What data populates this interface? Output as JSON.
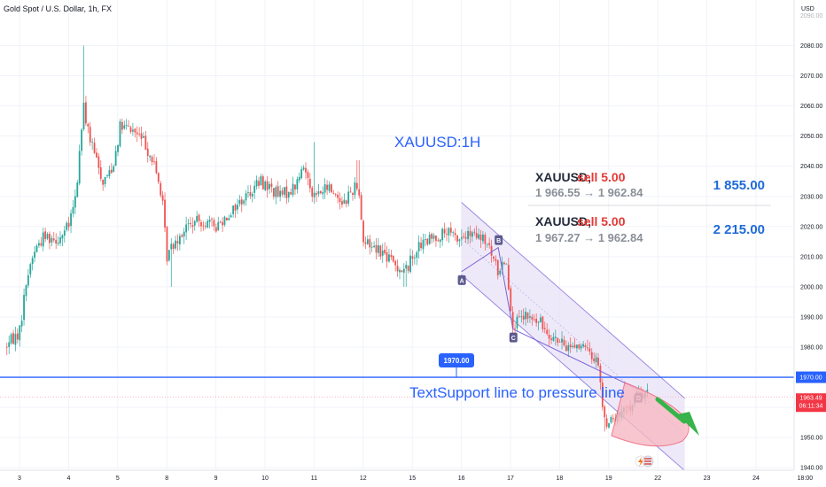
{
  "header": {
    "title": "Gold Spot / U.S. Dollar, 1h, FX",
    "currency": "USD"
  },
  "chart_data": {
    "type": "candlestick",
    "symbol": "XAUUSD",
    "timeframe": "1h",
    "ylim": [
      1938,
      2092
    ],
    "y_ticks": [
      1940,
      1950,
      1960,
      1970,
      1980,
      1990,
      2000,
      2010,
      2020,
      2030,
      2040,
      2050,
      2060,
      2070,
      2080
    ],
    "x_ticks": [
      "3",
      "4",
      "5",
      "8",
      "9",
      "10",
      "11",
      "12",
      "15",
      "16",
      "17",
      "18",
      "19",
      "22",
      "23",
      "24",
      "18:00"
    ],
    "x_tick_day_index": [
      0,
      1,
      2,
      3,
      4,
      5,
      6,
      7,
      8,
      9,
      10,
      11,
      12,
      13,
      14,
      15,
      16
    ],
    "anchors": [
      {
        "day": -0.3,
        "price": 1980
      },
      {
        "day": 0.0,
        "price": 1985
      },
      {
        "day": 0.15,
        "price": 2003
      },
      {
        "day": 0.3,
        "price": 2012
      },
      {
        "day": 0.5,
        "price": 2017
      },
      {
        "day": 0.8,
        "price": 2016
      },
      {
        "day": 1.0,
        "price": 2020
      },
      {
        "day": 1.15,
        "price": 2030
      },
      {
        "day": 1.3,
        "price": 2060
      },
      {
        "day": 1.45,
        "price": 2048
      },
      {
        "day": 1.7,
        "price": 2035
      },
      {
        "day": 1.9,
        "price": 2040
      },
      {
        "day": 2.05,
        "price": 2053
      },
      {
        "day": 2.3,
        "price": 2052
      },
      {
        "day": 2.55,
        "price": 2048
      },
      {
        "day": 2.75,
        "price": 2040
      },
      {
        "day": 2.9,
        "price": 2030
      },
      {
        "day": 3.0,
        "price": 2010
      },
      {
        "day": 3.15,
        "price": 2015
      },
      {
        "day": 3.4,
        "price": 2020
      },
      {
        "day": 3.7,
        "price": 2022
      },
      {
        "day": 4.0,
        "price": 2020
      },
      {
        "day": 4.3,
        "price": 2025
      },
      {
        "day": 4.6,
        "price": 2030
      },
      {
        "day": 4.9,
        "price": 2035
      },
      {
        "day": 5.1,
        "price": 2033
      },
      {
        "day": 5.3,
        "price": 2030
      },
      {
        "day": 5.6,
        "price": 2033
      },
      {
        "day": 5.8,
        "price": 2040
      },
      {
        "day": 6.0,
        "price": 2030
      },
      {
        "day": 6.3,
        "price": 2033
      },
      {
        "day": 6.6,
        "price": 2028
      },
      {
        "day": 6.9,
        "price": 2035
      },
      {
        "day": 7.0,
        "price": 2015
      },
      {
        "day": 7.3,
        "price": 2013
      },
      {
        "day": 7.6,
        "price": 2008
      },
      {
        "day": 7.85,
        "price": 2005
      },
      {
        "day": 8.1,
        "price": 2013
      },
      {
        "day": 8.4,
        "price": 2016
      },
      {
        "day": 8.7,
        "price": 2018
      },
      {
        "day": 8.9,
        "price": 2016
      },
      {
        "day": 9.2,
        "price": 2017
      },
      {
        "day": 9.5,
        "price": 2015
      },
      {
        "day": 9.75,
        "price": 2005
      },
      {
        "day": 9.9,
        "price": 2010
      },
      {
        "day": 10.05,
        "price": 1987
      },
      {
        "day": 10.3,
        "price": 1990
      },
      {
        "day": 10.6,
        "price": 1988
      },
      {
        "day": 10.9,
        "price": 1983
      },
      {
        "day": 11.1,
        "price": 1980
      },
      {
        "day": 11.35,
        "price": 1981
      },
      {
        "day": 11.6,
        "price": 1978
      },
      {
        "day": 11.8,
        "price": 1975
      },
      {
        "day": 11.9,
        "price": 1955
      },
      {
        "day": 12.1,
        "price": 1956
      },
      {
        "day": 12.3,
        "price": 1958
      },
      {
        "day": 12.5,
        "price": 1962
      },
      {
        "day": 12.7,
        "price": 1965
      },
      {
        "day": 12.8,
        "price": 1963.49
      }
    ],
    "spikes": [
      {
        "day": 1.3,
        "high": 2080
      },
      {
        "day": 3.1,
        "low": 2000
      },
      {
        "day": 6.0,
        "high": 2048
      },
      {
        "day": 6.9,
        "high": 2042
      },
      {
        "day": 7.85,
        "low": 2000
      },
      {
        "day": 10.05,
        "low": 1985
      },
      {
        "day": 11.9,
        "low": 1952
      }
    ],
    "channel": {
      "upper_start": {
        "day": 9.0,
        "price": 2028
      },
      "upper_end": {
        "day": 13.55,
        "price": 1963
      },
      "lower_start": {
        "day": 9.0,
        "price": 2004
      },
      "lower_end": {
        "day": 13.55,
        "price": 1939
      }
    },
    "pattern_points": [
      {
        "label": "A",
        "day": 9.0,
        "price": 2005
      },
      {
        "label": "B",
        "day": 9.75,
        "price": 2013
      },
      {
        "label": "C",
        "day": 10.05,
        "price": 1986
      },
      {
        "label": "D",
        "day": 12.6,
        "price": 1966
      }
    ],
    "annotations": {
      "symbol_label": "XAUUSD:1H",
      "support_text": "TextSupport line to pressure line"
    },
    "levels": {
      "support_level": 1970.0,
      "support_label": "1970.00",
      "last_price": 1963.49,
      "last_price_label": "1963.49",
      "countdown": "06:11:34"
    },
    "trades": [
      {
        "symbol": "XAUUSD,",
        "side": "sell 5.00",
        "range": "1 966.55 → 1 962.84",
        "profit": "1 855.00"
      },
      {
        "symbol": "XAUUSD,",
        "side": "sell 5.00",
        "range": "1 967.27 → 1 962.84",
        "profit": "2 215.00"
      }
    ],
    "colors": {
      "up": "#26a69a",
      "down": "#ef5350",
      "channel_fill": "#e8e1f7",
      "channel_line": "#9c88e0",
      "support_line": "#2962ff",
      "last_price_bg": "#f23645",
      "target_fill": "#f7b9c3",
      "arrow": "#36b34a"
    }
  }
}
